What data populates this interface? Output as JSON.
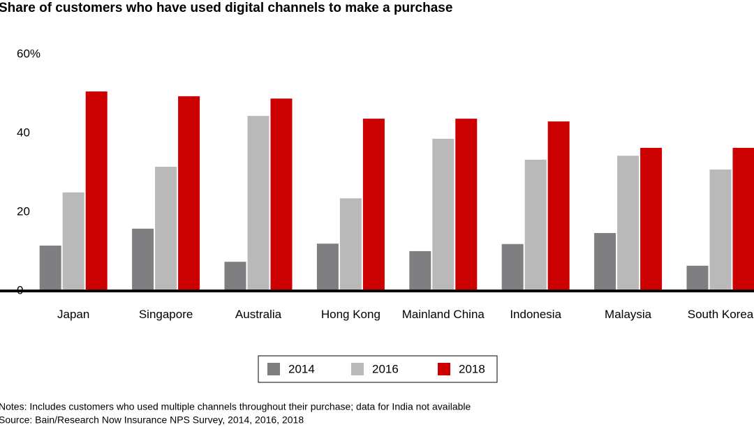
{
  "chart_data": {
    "type": "bar",
    "title": "Share of customers who have used digital channels to make a purchase",
    "categories": [
      "Japan",
      "Singapore",
      "Australia",
      "Hong Kong",
      "Mainland China",
      "Indonesia",
      "Malaysia",
      "South Korea"
    ],
    "series": [
      {
        "name": "2014",
        "color": "#7f7f81",
        "values": [
          11.5,
          15.8,
          7.4,
          12,
          10.1,
          11.9,
          14.7,
          6.4
        ]
      },
      {
        "name": "2016",
        "color": "#b9b9b9",
        "values": [
          25,
          31.5,
          44.4,
          23.5,
          38.6,
          33.3,
          34.3,
          30.8
        ]
      },
      {
        "name": "2018",
        "color": "#cc0000",
        "values": [
          50.6,
          49.4,
          48.8,
          43.7,
          43.7,
          43,
          36.3,
          36.3
        ]
      }
    ],
    "ylim": [
      0,
      60
    ],
    "yticks": [
      0,
      20,
      40,
      {
        "value": 60,
        "label": "60%"
      }
    ],
    "notes": "Notes: Includes customers who used multiple channels throughout their purchase; data for India not available",
    "source": "Source: Bain/Research Now Insurance NPS Survey, 2014, 2016, 2018"
  }
}
